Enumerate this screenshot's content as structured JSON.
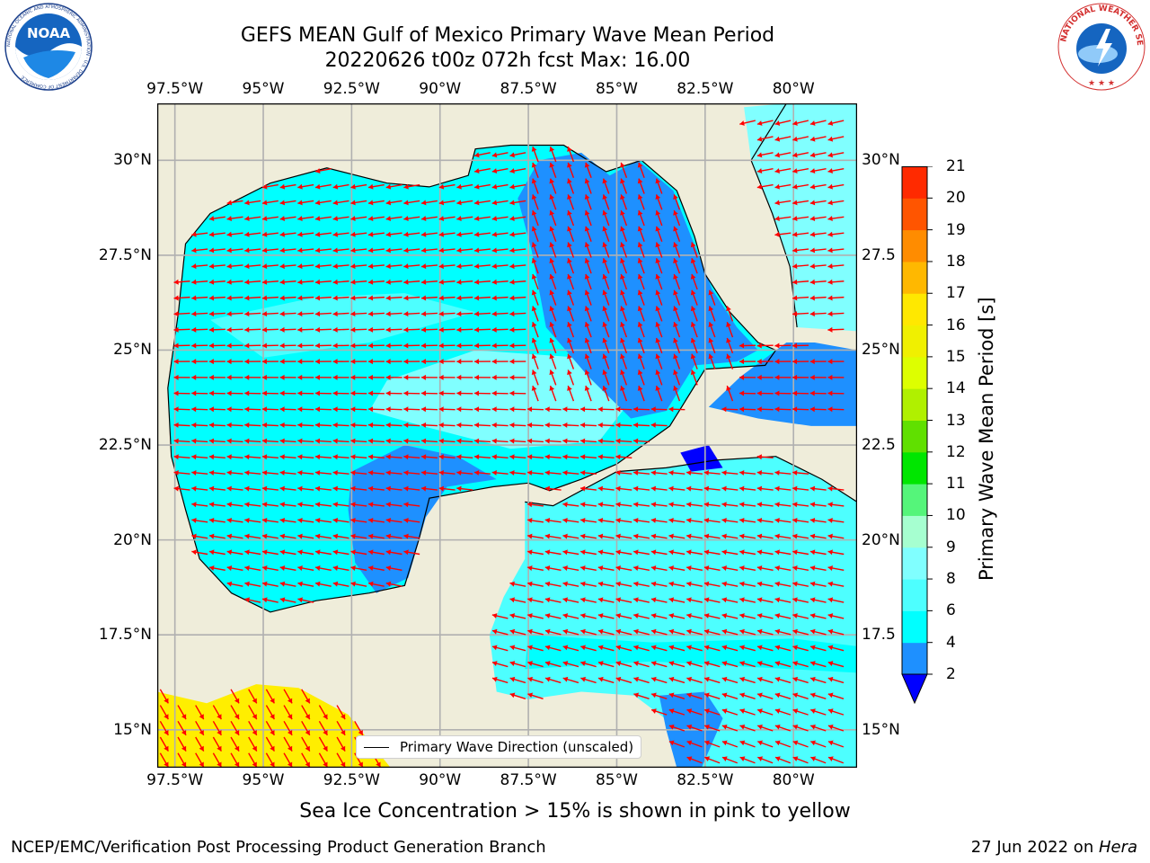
{
  "title": {
    "line1": "GEFS MEAN Gulf of Mexico Primary Wave Mean Period",
    "line2": "20220626 t00z 072h fcst   Max: 16.00"
  },
  "logos": {
    "left": {
      "text": "NOAA",
      "ring_text": "NATIONAL OCEANIC AND ATMOSPHERIC ADMINISTRATION · U.S. DEPARTMENT OF COMMERCE"
    },
    "right": {
      "ring_text": "NATIONAL WEATHER SERVICE"
    }
  },
  "map": {
    "lon_ticks": [
      "97.5°W",
      "95°W",
      "92.5°W",
      "90°W",
      "87.5°W",
      "85°W",
      "82.5°W",
      "80°W"
    ],
    "lat_ticks_left": [
      "30°N",
      "27.5°N",
      "25°N",
      "22.5°N",
      "20°N",
      "17.5°N",
      "15°N"
    ],
    "lat_ticks_right": [
      "30°N",
      "27.5",
      "25°N",
      "22.5",
      "20°N",
      "17.5",
      "15°N"
    ],
    "lon_values": [
      -97.5,
      -95,
      -92.5,
      -90,
      -87.5,
      -85,
      -82.5,
      -80
    ],
    "lat_values": [
      30,
      27.5,
      25,
      22.5,
      20,
      17.5,
      15
    ],
    "extent": {
      "lon": [
        -98,
        -78.2
      ],
      "lat": [
        14,
        31.5
      ]
    },
    "legend_label": "Primary Wave Direction (unscaled)",
    "colors": {
      "land": "#efedda",
      "water_c1": "#00ffff",
      "water_c2": "#4dffff",
      "water_c3": "#80ffff",
      "water_blue": "#1e90ff",
      "arrow": "#ff0000",
      "grid": "#b0b0b0"
    }
  },
  "colorbar": {
    "label": "Primary Wave Mean Period [s]",
    "ticks": [
      "2",
      "4",
      "6",
      "8",
      "9",
      "10",
      "11",
      "12",
      "13",
      "14",
      "15",
      "16",
      "17",
      "18",
      "19",
      "20",
      "21"
    ],
    "colors": [
      "#1e90ff",
      "#00ffff",
      "#4dffff",
      "#80ffff",
      "#a6ffd0",
      "#55f57a",
      "#00e600",
      "#60e000",
      "#b0f000",
      "#ddff00",
      "#f0f000",
      "#ffe800",
      "#ffb800",
      "#ff8c00",
      "#ff5500",
      "#ff2a00"
    ],
    "under_color": "#0000ff"
  },
  "caption": "Sea Ice Concentration > 15% is shown in pink to yellow",
  "footer": {
    "left": "NCEP/EMC/Verification Post Processing Product Generation Branch",
    "right_date": "27 Jun 2022 on ",
    "right_host": "Hera"
  }
}
